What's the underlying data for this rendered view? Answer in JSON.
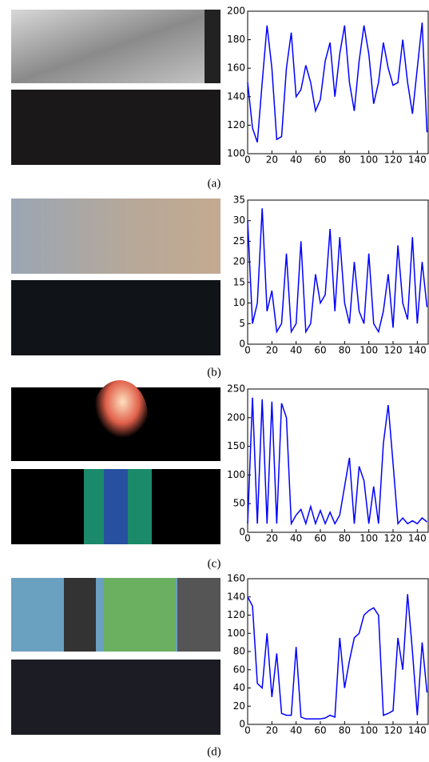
{
  "chart_data": [
    {
      "type": "line",
      "caption": "(a)",
      "color": "#0000ff",
      "x": [
        0,
        4,
        8,
        12,
        16,
        20,
        24,
        28,
        32,
        36,
        40,
        44,
        48,
        52,
        56,
        60,
        64,
        68,
        72,
        76,
        80,
        84,
        88,
        92,
        96,
        100,
        104,
        108,
        112,
        116,
        120,
        124,
        128,
        132,
        136,
        140,
        144,
        148
      ],
      "values": [
        150,
        118,
        108,
        150,
        190,
        160,
        110,
        112,
        160,
        185,
        140,
        145,
        162,
        150,
        130,
        138,
        165,
        178,
        140,
        170,
        190,
        150,
        130,
        165,
        190,
        170,
        135,
        150,
        178,
        160,
        148,
        150,
        180,
        150,
        128,
        160,
        192,
        115
      ],
      "xlim": [
        0,
        149
      ],
      "ylim": [
        100,
        200
      ],
      "xticks": [
        0,
        20,
        40,
        60,
        80,
        100,
        120,
        140
      ],
      "yticks": [
        100,
        120,
        140,
        160,
        180,
        200
      ]
    },
    {
      "type": "line",
      "caption": "(b)",
      "color": "#0000ff",
      "x": [
        0,
        4,
        8,
        12,
        16,
        20,
        24,
        28,
        32,
        36,
        40,
        44,
        48,
        52,
        56,
        60,
        64,
        68,
        72,
        76,
        80,
        84,
        88,
        92,
        96,
        100,
        104,
        108,
        112,
        116,
        120,
        124,
        128,
        132,
        136,
        140,
        144,
        148
      ],
      "values": [
        30,
        5,
        10,
        33,
        8,
        13,
        3,
        5,
        22,
        3,
        5,
        25,
        3,
        5,
        17,
        10,
        12,
        28,
        8,
        26,
        10,
        5,
        20,
        8,
        5,
        22,
        5,
        3,
        8,
        17,
        4,
        24,
        10,
        6,
        26,
        5,
        20,
        9
      ],
      "xlim": [
        0,
        149
      ],
      "ylim": [
        0,
        35
      ],
      "xticks": [
        0,
        20,
        40,
        60,
        80,
        100,
        120,
        140
      ],
      "yticks": [
        0,
        5,
        10,
        15,
        20,
        25,
        30,
        35
      ]
    },
    {
      "type": "line",
      "caption": "(c)",
      "color": "#0000ff",
      "x": [
        0,
        4,
        8,
        12,
        16,
        20,
        24,
        28,
        32,
        36,
        40,
        44,
        48,
        52,
        56,
        60,
        64,
        68,
        72,
        76,
        80,
        84,
        88,
        92,
        96,
        100,
        104,
        108,
        112,
        116,
        120,
        124,
        128,
        132,
        136,
        140,
        144,
        148
      ],
      "values": [
        15,
        235,
        15,
        232,
        15,
        228,
        15,
        225,
        200,
        15,
        30,
        40,
        15,
        45,
        15,
        38,
        15,
        35,
        15,
        30,
        80,
        130,
        15,
        115,
        90,
        15,
        80,
        15,
        155,
        222,
        120,
        15,
        25,
        15,
        20,
        15,
        25,
        18
      ],
      "xlim": [
        0,
        149
      ],
      "ylim": [
        0,
        250
      ],
      "xticks": [
        0,
        20,
        40,
        60,
        80,
        100,
        120,
        140
      ],
      "yticks": [
        0,
        50,
        100,
        150,
        200,
        250
      ]
    },
    {
      "type": "line",
      "caption": "(d)",
      "color": "#0000ff",
      "x": [
        0,
        4,
        8,
        12,
        16,
        20,
        24,
        28,
        32,
        36,
        40,
        44,
        48,
        52,
        56,
        60,
        64,
        68,
        72,
        76,
        80,
        84,
        88,
        92,
        96,
        100,
        104,
        108,
        112,
        116,
        120,
        124,
        128,
        132,
        136,
        140,
        144,
        148
      ],
      "values": [
        140,
        130,
        45,
        40,
        100,
        30,
        78,
        12,
        10,
        10,
        85,
        8,
        6,
        6,
        6,
        6,
        7,
        10,
        8,
        95,
        40,
        70,
        95,
        100,
        120,
        125,
        128,
        120,
        10,
        12,
        15,
        95,
        60,
        143,
        80,
        10,
        90,
        35
      ],
      "xlim": [
        0,
        149
      ],
      "ylim": [
        0,
        160
      ],
      "xticks": [
        0,
        20,
        40,
        60,
        80,
        100,
        120,
        140
      ],
      "yticks": [
        0,
        20,
        40,
        60,
        80,
        100,
        120,
        140,
        160
      ]
    }
  ]
}
